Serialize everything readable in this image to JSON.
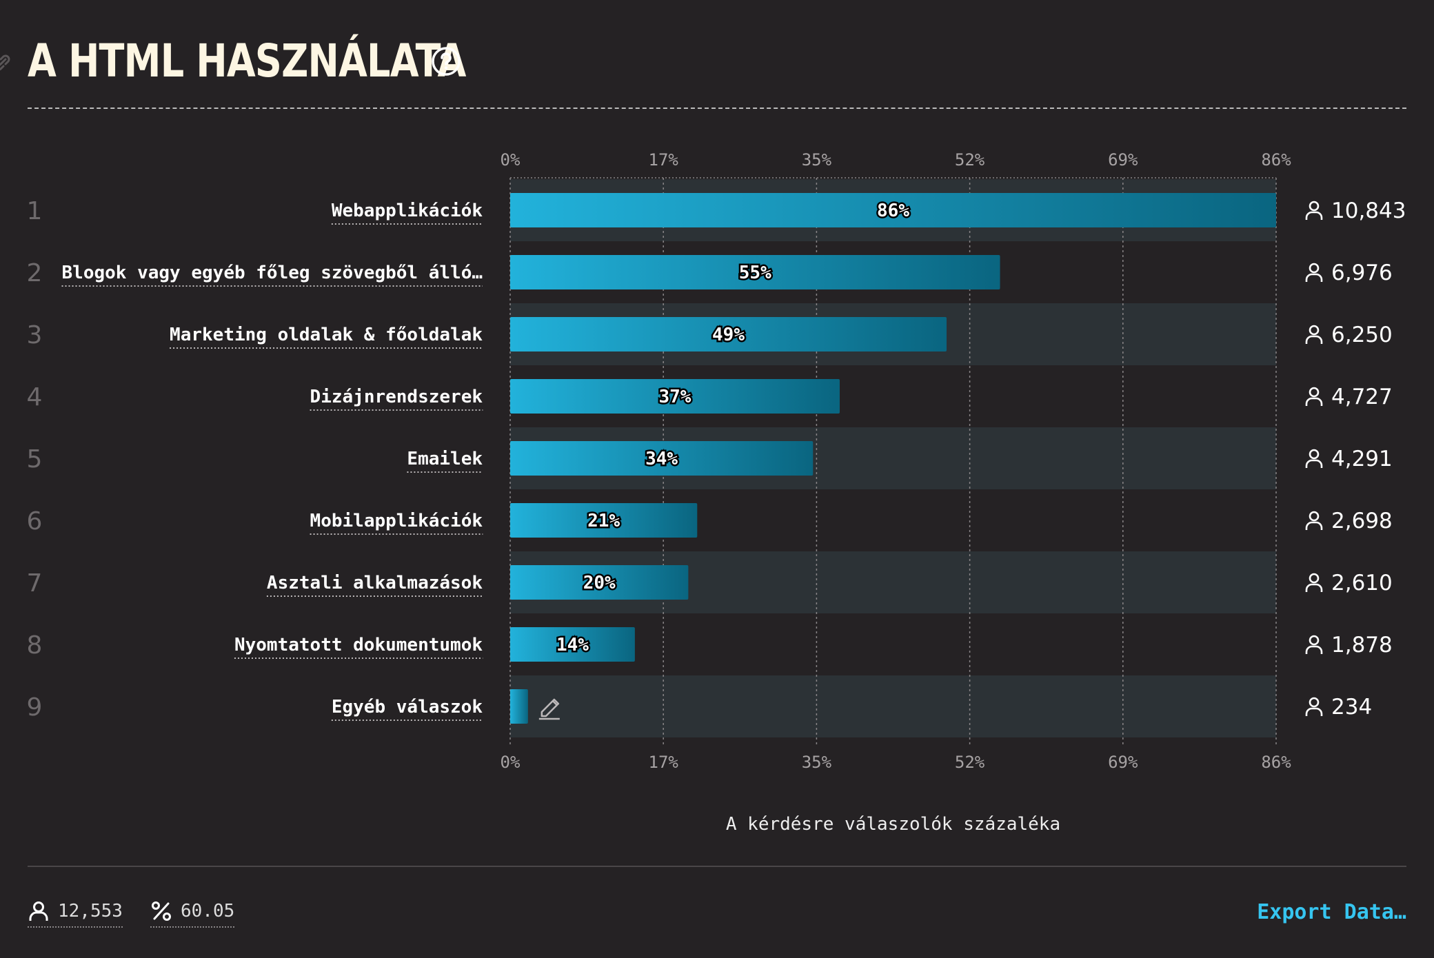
{
  "header": {
    "title": "A HTML HASZNÁLATA"
  },
  "chart_data": {
    "type": "bar",
    "orientation": "horizontal",
    "title": "A HTML HASZNÁLATA",
    "xlabel": "A kérdésre válaszolók százaléka",
    "xlim": [
      0,
      86
    ],
    "xticks": [
      "0%",
      "17%",
      "35%",
      "52%",
      "69%",
      "86%"
    ],
    "grid": true,
    "categories": [
      "Webapplikációk",
      "Blogok vagy egyéb főleg szövegből álló…",
      "Marketing oldalak & főoldalak",
      "Dizájnrendszerek",
      "Emailek",
      "Mobilapplikációk",
      "Asztali alkalmazások",
      "Nyomtatott dokumentumok",
      "Egyéb válaszok"
    ],
    "values": [
      86,
      55,
      49,
      37,
      34,
      21,
      20,
      14,
      2
    ],
    "value_labels": [
      "86%",
      "55%",
      "49%",
      "37%",
      "34%",
      "21%",
      "20%",
      "14%",
      ""
    ],
    "counts": [
      "10,843",
      "6,976",
      "6,250",
      "4,727",
      "4,291",
      "2,698",
      "2,610",
      "1,878",
      "234"
    ],
    "ranks": [
      "1",
      "2",
      "3",
      "4",
      "5",
      "6",
      "7",
      "8",
      "9"
    ]
  },
  "footer": {
    "respondents": "12,553",
    "percentage": "60.05",
    "export_label": "Export Data…"
  },
  "colors": {
    "background": "#252224",
    "band": "#2c3236",
    "bar_start": "#22b2db",
    "bar_end": "#0a6580",
    "accent": "#36c5f0"
  },
  "icons": {
    "user": "user-icon",
    "help": "help-icon",
    "edit": "pencil-icon",
    "percent": "percent-icon",
    "link": "link-icon"
  }
}
